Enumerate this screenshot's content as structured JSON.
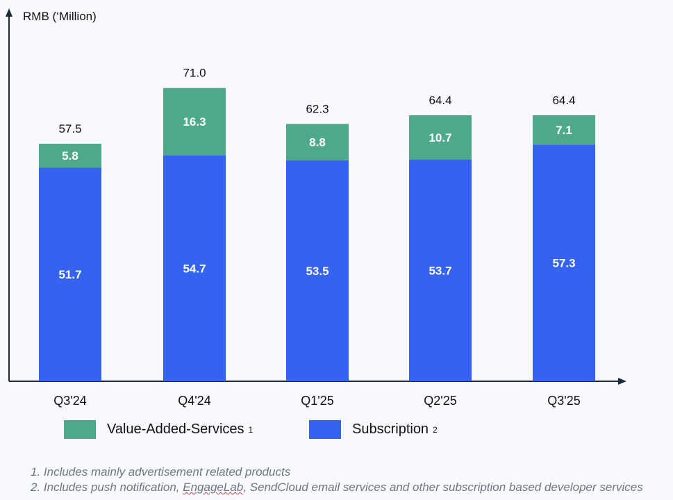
{
  "chart_data": {
    "type": "bar",
    "stacked": true,
    "ylabel": "RMB (‘Million)",
    "categories": [
      "Q3'24",
      "Q4'24",
      "Q1'25",
      "Q2'25",
      "Q3'25"
    ],
    "series": [
      {
        "name": "Subscription",
        "footnote": "2",
        "color": "#3563f0",
        "values": [
          51.7,
          54.7,
          53.5,
          53.7,
          57.3
        ]
      },
      {
        "name": "Value-Added-Services",
        "footnote": "1",
        "color": "#4ea98a",
        "values": [
          5.8,
          16.3,
          8.8,
          10.7,
          7.1
        ]
      }
    ],
    "totals": [
      "57.5",
      "71.0",
      "62.3",
      "64.4",
      "64.4"
    ],
    "legend": "bottom",
    "grid": false
  },
  "footnotes": [
    "1. Includes mainly advertisement related products",
    "2. Includes push notification, ",
    "EngageLab",
    ", SendCloud email services and other subscription based developer services"
  ]
}
